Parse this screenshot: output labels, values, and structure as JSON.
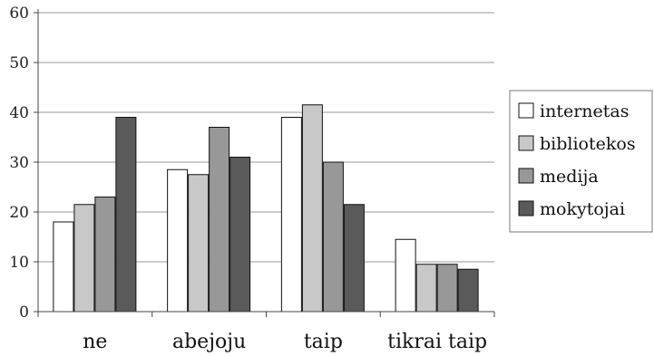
{
  "chart_data": {
    "type": "bar",
    "categories": [
      "ne",
      "abejoju",
      "taip",
      "tikrai taip"
    ],
    "series": [
      {
        "name": "internetas",
        "values": [
          18,
          28.5,
          39,
          14.5
        ],
        "color": "#ffffff"
      },
      {
        "name": "bibliotekos",
        "values": [
          21.5,
          27.5,
          41.5,
          9.5
        ],
        "color": "#c8c8c8"
      },
      {
        "name": "medija",
        "values": [
          23,
          37,
          30,
          9.5
        ],
        "color": "#989898"
      },
      {
        "name": "mokytojai",
        "values": [
          39,
          31,
          21.5,
          8.5
        ],
        "color": "#5a5a5a"
      }
    ],
    "ylim": [
      0,
      60
    ],
    "yticks": [
      "0",
      "10",
      "20",
      "30",
      "40",
      "50",
      "60"
    ],
    "grid": true,
    "legend_position": "right"
  }
}
